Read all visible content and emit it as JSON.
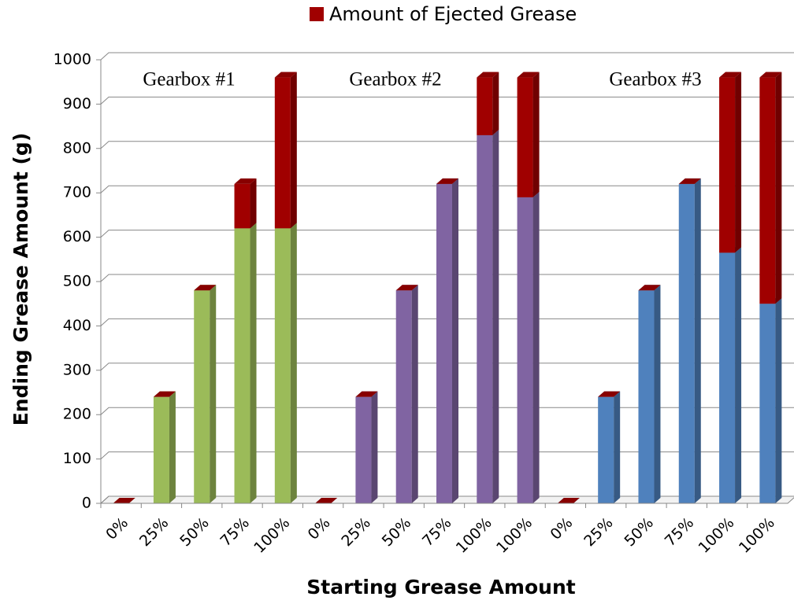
{
  "chart_data": {
    "type": "bar3d-stacked",
    "x_label": "Starting Grease Amount",
    "y_label": "Ending Grease Amount (g)",
    "annotations": [
      "Gearbox #1",
      "Gearbox #2",
      "Gearbox #3"
    ],
    "categories": [
      "0%",
      "25%",
      "50%",
      "75%",
      "100%",
      "0%",
      "25%",
      "50%",
      "75%",
      "100%",
      "100%",
      "0%",
      "25%",
      "50%",
      "75%",
      "100%",
      "100%"
    ],
    "series": [
      {
        "colors": [
          "#9bbb59",
          "#9bbb59",
          "#9bbb59",
          "#9bbb59",
          "#9bbb59",
          "#8064a2",
          "#8064a2",
          "#8064a2",
          "#8064a2",
          "#8064a2",
          "#8064a2",
          "#4f81bd",
          "#4f81bd",
          "#4f81bd",
          "#4f81bd",
          "#4f81bd",
          "#4f81bd"
        ],
        "values": [
          0,
          240,
          480,
          620,
          620,
          0,
          240,
          480,
          720,
          830,
          690,
          0,
          240,
          480,
          720,
          565,
          450
        ]
      },
      {
        "name": "Amount of Ejected Grease",
        "color": "#a00000",
        "values": [
          0,
          0,
          0,
          100,
          340,
          0,
          0,
          0,
          0,
          130,
          270,
          0,
          0,
          0,
          0,
          395,
          510
        ]
      }
    ],
    "ylim": [
      0,
      1000
    ],
    "yticks": [
      0,
      100,
      200,
      300,
      400,
      500,
      600,
      700,
      800,
      900,
      1000
    ],
    "grid": true
  }
}
